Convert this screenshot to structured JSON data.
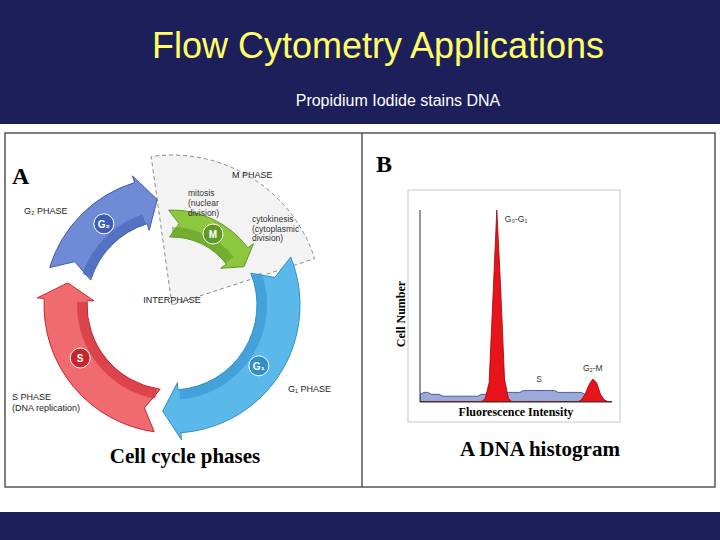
{
  "header": {
    "title": "Flow Cytometry Applications",
    "subtitle": "Propidium Iodide stains DNA"
  },
  "panel_a": {
    "letter": "A",
    "caption": "Cell cycle phases",
    "center_label": "INTERPHASE",
    "phases": [
      {
        "name": "M",
        "phase_label": [
          "M PHASE"
        ]
      },
      {
        "name": "G₁",
        "phase_label": [
          "G₁ PHASE"
        ]
      },
      {
        "name": "S",
        "phase_label": [
          "S PHASE",
          "(DNA replication)"
        ]
      },
      {
        "name": "G₂",
        "phase_label": [
          "G₂ PHASE"
        ]
      }
    ],
    "mitosis_lines": [
      "mitosis",
      "(nuclear",
      "division)"
    ],
    "cytokinesis_lines": [
      "cytokinesis",
      "(cytoplasmic",
      "division)"
    ]
  },
  "panel_b": {
    "letter": "B",
    "caption": "A DNA histogram"
  },
  "chart_data": {
    "type": "area",
    "x_label": "Fluorescence Intensity",
    "y_label": "Cell Number",
    "x": [
      0,
      2,
      4,
      6,
      8,
      10,
      12,
      14,
      16,
      18,
      20,
      22,
      24,
      26,
      28,
      30,
      32,
      34,
      36,
      38,
      40,
      42,
      44,
      46,
      48,
      50,
      52,
      54,
      56,
      58,
      60,
      62,
      64,
      66,
      68,
      70,
      72,
      74,
      76,
      78,
      80,
      82,
      84,
      86,
      88,
      90,
      92,
      94,
      96,
      98,
      100
    ],
    "series": [
      {
        "name": "S",
        "color": "#9aa9d8",
        "values": [
          4,
          5,
          5,
          4,
          4,
          4,
          3,
          3,
          3,
          3,
          3,
          3,
          3,
          3,
          3,
          3,
          4,
          4,
          5,
          5,
          5,
          5,
          5,
          5,
          5,
          5,
          5,
          6,
          6,
          6,
          6,
          6,
          6,
          6,
          6,
          6,
          5,
          5,
          5,
          5,
          5,
          5,
          5,
          4,
          4,
          3,
          3,
          2,
          1,
          0,
          0
        ]
      },
      {
        "name": "G₀-G₁",
        "color": "#e8141c",
        "values": [
          0,
          0,
          0,
          0,
          0,
          0,
          0,
          0,
          0,
          0,
          0,
          0,
          0,
          0,
          0,
          0,
          0,
          2,
          10,
          55,
          100,
          60,
          12,
          2,
          0,
          0,
          0,
          0,
          0,
          0,
          0,
          0,
          0,
          0,
          0,
          0,
          0,
          0,
          0,
          0,
          0,
          0,
          0,
          0,
          0,
          0,
          0,
          0,
          0,
          0,
          0
        ]
      },
      {
        "name": "G₂-M",
        "color": "#e8141c",
        "values": [
          0,
          0,
          0,
          0,
          0,
          0,
          0,
          0,
          0,
          0,
          0,
          0,
          0,
          0,
          0,
          0,
          0,
          0,
          0,
          0,
          0,
          0,
          0,
          0,
          0,
          0,
          0,
          0,
          0,
          0,
          0,
          0,
          0,
          0,
          0,
          0,
          0,
          0,
          0,
          0,
          0,
          0,
          1,
          4,
          9,
          12,
          10,
          4,
          1,
          0,
          0
        ]
      }
    ],
    "xlim": [
      0,
      100
    ],
    "ylim": [
      0,
      100
    ],
    "tick_labels": false
  }
}
